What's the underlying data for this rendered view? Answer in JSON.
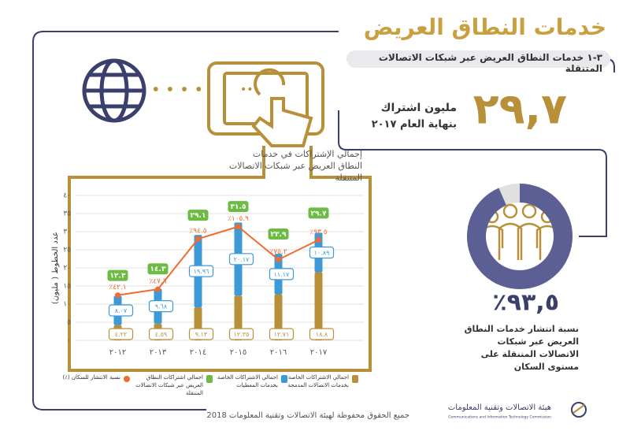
{
  "header": {
    "title": "خدمات النطاق العريض",
    "subtitle": "٣-١ خدمات النطاق العريض عبر شبكات الاتصالات المتنقلة"
  },
  "stat_subscribers": {
    "value": "٢٩,٧",
    "unit": "مليون اشتراك",
    "period": "بنهاية العام ٢٠١٧"
  },
  "stat_penetration": {
    "value": 93.5,
    "label": "٪٩٣,٥",
    "description": "نسبة انتشار خدمات النطاق العريض عبر شبكات الاتصالات المتنقلة على مستوى السكان"
  },
  "chart_data": {
    "type": "bar",
    "stacked": true,
    "title": "إجمالي الإشتراكات في خدمات النطاق العريض عبر شبكات الاتصالات المتنقلة",
    "ylabel": "عدد الخطوط ( مليون)",
    "categories": [
      "٢٠١٢",
      "٢٠١٣",
      "٢٠١٤",
      "٢٠١٥",
      "٢٠١٦",
      "٢٠١٧"
    ],
    "ylim": [
      0,
      40
    ],
    "yticks": [
      {
        "value": 0,
        "label": "٠"
      },
      {
        "value": 5,
        "label": "٥"
      },
      {
        "value": 10,
        "label": "١٠"
      },
      {
        "value": 15,
        "label": "١٥"
      },
      {
        "value": 20,
        "label": "٢٠"
      },
      {
        "value": 25,
        "label": "٢٥"
      },
      {
        "value": 30,
        "label": "٣٠"
      },
      {
        "value": 35,
        "label": "٣٥"
      },
      {
        "value": 40,
        "label": "٤٠"
      }
    ],
    "y2lim": [
      0,
      135
    ],
    "grid": true,
    "series": [
      {
        "name": "اجمالي الاشتراكات الخاصة بخدمات الاتصالات المدمجة",
        "type": "bar",
        "color": "#b8903a",
        "values": [
          4.22,
          4.59,
          9.13,
          12.35,
          12.71,
          18.8
        ],
        "value_labels": [
          "٤.٢٢",
          "٤.٥٩",
          "٩.١٣",
          "١٢.٣٥",
          "١٢.٧١",
          "١٨.٨"
        ]
      },
      {
        "name": "اجمالي الاشتراكات الخاصة بخدمات المعطيات",
        "type": "bar",
        "color": "#3d9ad6",
        "values": [
          8.07,
          9.68,
          19.96,
          20.17,
          11.17,
          10.89
        ],
        "value_labels": [
          "٨.٠٧",
          "٩.٦٨",
          "١٩.٩٦",
          "٢٠.١٧",
          "١١.١٧",
          "١٠.٨٩"
        ]
      },
      {
        "name": "اجمالي اشتراكات النطاق العريض عبر شبكات الاتصالات المتنقلة",
        "type": "total",
        "color": "#6dbb45",
        "values": [
          12.3,
          14.3,
          29.1,
          31.5,
          23.9,
          29.7
        ],
        "value_labels": [
          "١٢.٣",
          "١٤.٣",
          "٢٩.١",
          "٣١.٥",
          "٢٣.٩",
          "٢٩.٧"
        ]
      },
      {
        "name": "نسبة الانتشار للسكان (٪)",
        "type": "line",
        "axis": "y2",
        "color": "#f26a2f",
        "values": [
          42.1,
          47.6,
          94.5,
          105.9,
          75.2,
          93.5
        ],
        "value_labels": [
          "٪٤٢.١",
          "٪٤٧.٦",
          "٪٩٤.٥",
          "٪١٠٥.٩",
          "٪٧٥.٢",
          "٪٩٣.٥"
        ]
      }
    ]
  },
  "footer": {
    "copyright": "جميع الحقوق محفوظة لهيئة الاتصالات وتقنية المعلومات 2018",
    "org_ar": "هيئة الاتصالات وتقنية المعلومات",
    "org_en": "Communications and Information Technology Commission"
  }
}
